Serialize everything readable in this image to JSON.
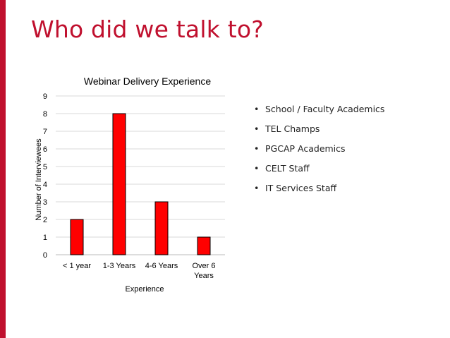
{
  "slide": {
    "title": "Who did we talk to?",
    "accent_color": "#c0102e"
  },
  "bullets": [
    "School / Faculty Academics",
    "TEL Champs",
    "PGCAP Academics",
    "CELT Staff",
    "IT Services Staff"
  ],
  "chart_data": {
    "type": "bar",
    "title": "Webinar Delivery Experience",
    "xlabel": "Experience",
    "ylabel": "Number of Interviewees",
    "categories": [
      [
        "< 1 year"
      ],
      [
        "1-3 Years"
      ],
      [
        "4-6 Years"
      ],
      [
        "Over 6",
        "Years"
      ]
    ],
    "values": [
      2,
      8,
      3,
      1
    ],
    "ylim": [
      0,
      9
    ],
    "yticks": [
      "0",
      "1",
      "2",
      "3",
      "4",
      "5",
      "6",
      "7",
      "8",
      "9"
    ],
    "grid": true,
    "legend": "none",
    "bar_color": "#ff0000",
    "bar_edge_color": "#000000"
  }
}
